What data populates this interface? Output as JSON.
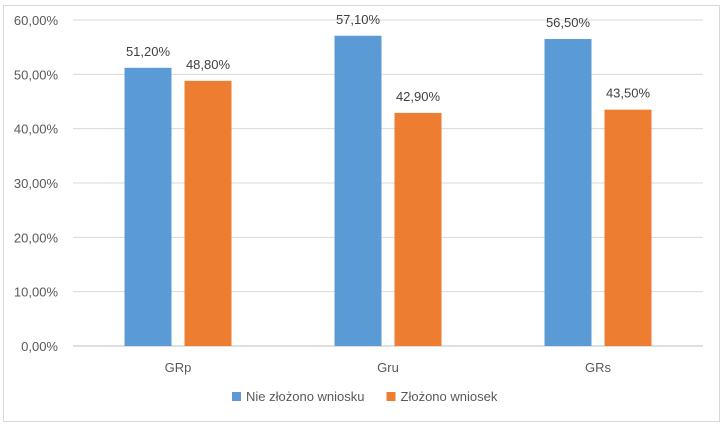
{
  "chart_data": {
    "type": "bar",
    "categories": [
      "GRp",
      "Gru",
      "GRs"
    ],
    "series": [
      {
        "name": "Nie złożono wniosku",
        "values": [
          51.2,
          57.1,
          56.5
        ],
        "labels": [
          "51,20%",
          "57,10%",
          "56,50%"
        ],
        "color": "#5b9bd5"
      },
      {
        "name": "Złożono wniosek",
        "values": [
          48.8,
          42.9,
          43.5
        ],
        "labels": [
          "48,80%",
          "42,90%",
          "43,50%"
        ],
        "color": "#ed7d31"
      }
    ],
    "ylim": [
      0,
      60
    ],
    "yticks": [
      {
        "value": 0,
        "label": "0,00%"
      },
      {
        "value": 10,
        "label": "10,00%"
      },
      {
        "value": 20,
        "label": "20,00%"
      },
      {
        "value": 30,
        "label": "30,00%"
      },
      {
        "value": 40,
        "label": "40,00%"
      },
      {
        "value": 50,
        "label": "50,00%"
      },
      {
        "value": 60,
        "label": "60,00%"
      }
    ],
    "grid": true,
    "legend": "bottom",
    "title": "",
    "xlabel": "",
    "ylabel": ""
  }
}
